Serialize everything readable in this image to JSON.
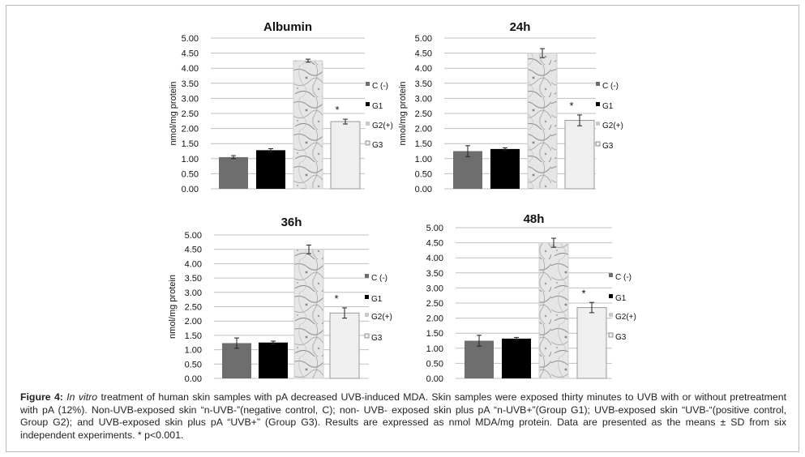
{
  "caption": {
    "label": "Figure 4:",
    "italic": "In vitro",
    "text": " treatment of human skin samples with pA decreased UVB-induced MDA. Skin samples were exposed thirty minutes to UVB with or without pretreatment with pA (12%). Non-UVB-exposed skin “n-UVB-”(negative control, C); non- UVB- exposed skin plus pA “n-UVB+”(Group G1); UVB-exposed skin “UVB-“(positive control, Group G2); and UVB-exposed skin plus pA “UVB+” (Group G3). Results are expressed as nmol MDA/mg protein. Data are presented as the means ± SD from six independent experiments. * p<0.001."
  },
  "colors": {
    "C": "#6e6e6e",
    "G1": "#000000",
    "G2": "#c9c9c9",
    "G3": "#efefef",
    "axis": "#bfbfbf"
  },
  "chart_data": [
    {
      "type": "bar",
      "title": "Albumin",
      "ylabel": "nmol/mg protein",
      "ylim": [
        0,
        5
      ],
      "yticks": [
        "0.00",
        "0.50",
        "1.00",
        "1.50",
        "2.00",
        "2.50",
        "3.00",
        "3.50",
        "4.00",
        "4.50",
        "5.00"
      ],
      "categories": [
        "C (-)",
        "G1",
        "G2(+)",
        "G3"
      ],
      "values": [
        1.05,
        1.28,
        4.25,
        2.23
      ],
      "errors": [
        0.05,
        0.05,
        0.05,
        0.08
      ],
      "significance": [
        "",
        "",
        "",
        "*"
      ],
      "legend": [
        "C (-)",
        "G1",
        "G2(+)",
        "G3"
      ]
    },
    {
      "type": "bar",
      "title": "24h",
      "ylabel": "nmol/mg protein",
      "ylim": [
        0,
        5
      ],
      "yticks": [
        "0.00",
        "0.50",
        "1.00",
        "1.50",
        "2.00",
        "2.50",
        "3.00",
        "3.50",
        "4.00",
        "4.50",
        "5.00"
      ],
      "categories": [
        "C (-)",
        "G1",
        "G2(+)",
        "G3"
      ],
      "values": [
        1.25,
        1.32,
        4.5,
        2.27
      ],
      "errors": [
        0.18,
        0.04,
        0.15,
        0.18
      ],
      "significance": [
        "",
        "",
        "",
        "*"
      ],
      "legend": [
        "C (-)",
        "G1",
        "G2(+)",
        "G3"
      ]
    },
    {
      "type": "bar",
      "title": "36h",
      "ylabel": "nmol/mg protein",
      "ylim": [
        0,
        5
      ],
      "yticks": [
        "0.00",
        "0.50",
        "1.00",
        "1.50",
        "2.00",
        "2.50",
        "3.00",
        "3.50",
        "4.00",
        "4.50",
        "5.00"
      ],
      "categories": [
        "C (-)",
        "G1",
        "G2(+)",
        "G3"
      ],
      "values": [
        1.23,
        1.25,
        4.5,
        2.28
      ],
      "errors": [
        0.18,
        0.05,
        0.15,
        0.18
      ],
      "significance": [
        "",
        "",
        "",
        "*"
      ],
      "legend": [
        "C (-)",
        "G1",
        "G2(+)",
        "G3"
      ]
    },
    {
      "type": "bar",
      "title": "48h",
      "ylabel": "",
      "ylim": [
        0,
        5
      ],
      "yticks": [
        "0.00",
        "0.50",
        "1.00",
        "1.50",
        "2.00",
        "2.50",
        "3.00",
        "3.50",
        "4.00",
        "4.50",
        "5.00"
      ],
      "categories": [
        "C (-)",
        "G1",
        "G2(+)",
        "G3"
      ],
      "values": [
        1.25,
        1.32,
        4.5,
        2.35
      ],
      "errors": [
        0.18,
        0.04,
        0.15,
        0.17
      ],
      "significance": [
        "",
        "",
        "",
        "*"
      ],
      "legend": [
        "C (-)",
        "G1",
        "G2(+)",
        "G3"
      ]
    }
  ]
}
